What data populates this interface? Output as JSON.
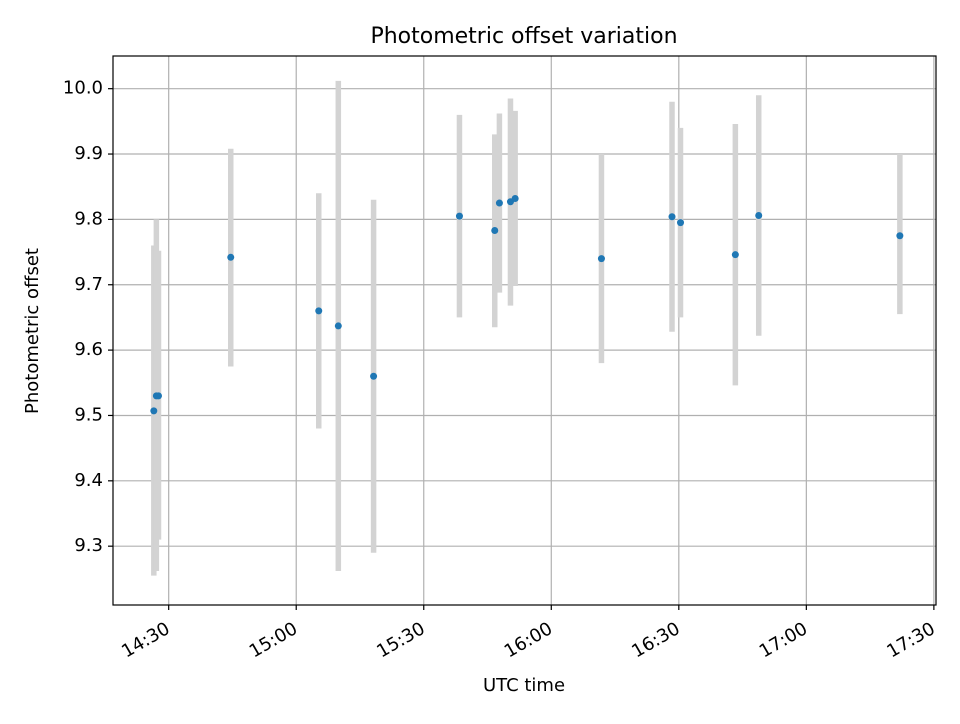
{
  "chart_data": {
    "type": "scatter",
    "title": "Photometric offset variation",
    "xlabel": "UTC time",
    "ylabel": "Photometric offset",
    "xlim": [
      "14:16.9",
      "17:30.5"
    ],
    "ylim": [
      9.21,
      10.05
    ],
    "x_ticks": [
      "14:30",
      "15:00",
      "15:30",
      "16:00",
      "16:30",
      "17:00",
      "17:30"
    ],
    "y_ticks": [
      "9.3",
      "9.4",
      "9.5",
      "9.6",
      "9.7",
      "9.8",
      "9.9",
      "10.0"
    ],
    "grid": true,
    "colors": {
      "point": "#1f77b4",
      "errorbar": "#d3d3d3",
      "grid": "#b0b0b0"
    },
    "series": [
      {
        "points": [
          {
            "x": "14:26.5",
            "y": 9.507,
            "ylow": 9.255,
            "yhigh": 9.76
          },
          {
            "x": "14:27.1",
            "y": 9.53,
            "ylow": 9.262,
            "yhigh": 9.8
          },
          {
            "x": "14:27.6",
            "y": 9.53,
            "ylow": 9.31,
            "yhigh": 9.752
          },
          {
            "x": "14:44.6",
            "y": 9.742,
            "ylow": 9.575,
            "yhigh": 9.908
          },
          {
            "x": "15:05.3",
            "y": 9.66,
            "ylow": 9.48,
            "yhigh": 9.84
          },
          {
            "x": "15:09.9",
            "y": 9.637,
            "ylow": 9.262,
            "yhigh": 10.012
          },
          {
            "x": "15:18.2",
            "y": 9.56,
            "ylow": 9.29,
            "yhigh": 9.83
          },
          {
            "x": "15:38.4",
            "y": 9.805,
            "ylow": 9.65,
            "yhigh": 9.96
          },
          {
            "x": "15:46.7",
            "y": 9.783,
            "ylow": 9.635,
            "yhigh": 9.93
          },
          {
            "x": "15:47.8",
            "y": 9.825,
            "ylow": 9.688,
            "yhigh": 9.962
          },
          {
            "x": "15:50.4",
            "y": 9.827,
            "ylow": 9.668,
            "yhigh": 9.985
          },
          {
            "x": "15:51.5",
            "y": 9.832,
            "ylow": 9.698,
            "yhigh": 9.966
          },
          {
            "x": "16:11.8",
            "y": 9.74,
            "ylow": 9.58,
            "yhigh": 9.9
          },
          {
            "x": "16:28.4",
            "y": 9.804,
            "ylow": 9.628,
            "yhigh": 9.98
          },
          {
            "x": "16:30.4",
            "y": 9.795,
            "ylow": 9.65,
            "yhigh": 9.94
          },
          {
            "x": "16:43.3",
            "y": 9.746,
            "ylow": 9.546,
            "yhigh": 9.946
          },
          {
            "x": "16:48.8",
            "y": 9.806,
            "ylow": 9.622,
            "yhigh": 9.99
          },
          {
            "x": "17:22.0",
            "y": 9.775,
            "ylow": 9.655,
            "yhigh": 9.9
          }
        ]
      }
    ]
  }
}
